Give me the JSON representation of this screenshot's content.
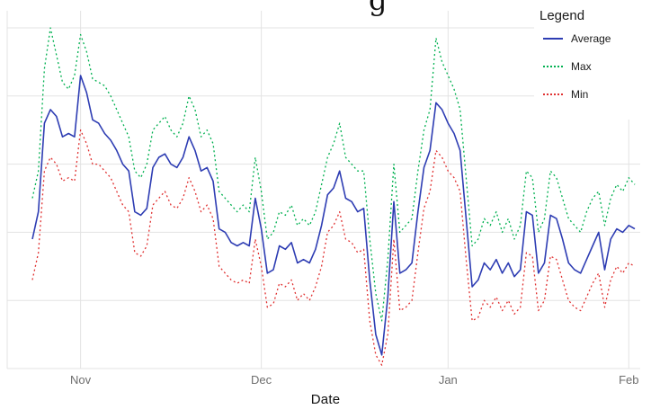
{
  "title_fragment": "g",
  "axis": {
    "x_title": "Date"
  },
  "legend": {
    "title": "Legend"
  },
  "colors": {
    "grid": "#e3e3e3",
    "tick_label": "#6e6e6e",
    "average": "#2e3db3",
    "max": "#00b050",
    "min": "#e03131"
  },
  "chart_data": {
    "type": "line",
    "title": "",
    "xlabel": "Date",
    "ylabel": "",
    "ylim": [
      0,
      105
    ],
    "y_gridlines": [
      0,
      20,
      40,
      60,
      80,
      100
    ],
    "grid": "on",
    "legend_position": "top-right",
    "x_ticks": [
      {
        "index": 8,
        "label": "Nov"
      },
      {
        "index": 38,
        "label": "Dec"
      },
      {
        "index": 69,
        "label": "Jan"
      },
      {
        "index": 99,
        "label": "Feb"
      }
    ],
    "series": [
      {
        "name": "Average",
        "color": "#2e3db3",
        "style": "solid",
        "values": [
          38,
          46,
          72,
          76,
          74,
          68,
          69,
          68,
          86,
          81,
          73,
          72,
          69,
          67,
          64,
          60,
          58,
          46,
          45,
          47,
          59,
          62,
          63,
          60,
          59,
          62,
          68,
          64,
          58,
          59,
          55,
          41,
          40,
          37,
          36,
          37,
          36,
          50,
          41,
          28,
          29,
          36,
          35,
          37,
          31,
          32,
          31,
          35,
          42,
          51,
          53,
          58,
          50,
          49,
          46,
          47,
          26,
          10,
          4,
          21,
          49,
          28,
          29,
          31,
          46,
          59,
          64,
          78,
          76,
          72,
          69,
          64,
          44,
          24,
          26,
          31,
          29,
          32,
          28,
          31,
          27,
          29,
          46,
          45,
          28,
          31,
          45,
          44,
          38,
          31,
          29,
          28,
          32,
          36,
          40,
          29,
          38,
          41,
          40,
          42,
          41
        ]
      },
      {
        "name": "Max",
        "color": "#00b050",
        "style": "dotted",
        "values": [
          50,
          58,
          88,
          100,
          92,
          84,
          82,
          86,
          98,
          93,
          85,
          84,
          83,
          80,
          76,
          72,
          68,
          58,
          56,
          60,
          70,
          72,
          74,
          70,
          68,
          72,
          80,
          76,
          68,
          70,
          66,
          52,
          50,
          48,
          46,
          48,
          46,
          62,
          52,
          38,
          40,
          46,
          45,
          48,
          42,
          44,
          42,
          46,
          54,
          62,
          66,
          72,
          62,
          60,
          58,
          58,
          38,
          22,
          14,
          32,
          60,
          40,
          42,
          44,
          58,
          70,
          76,
          97,
          90,
          86,
          82,
          76,
          56,
          36,
          38,
          44,
          42,
          46,
          40,
          44,
          38,
          42,
          58,
          56,
          40,
          44,
          58,
          56,
          50,
          44,
          42,
          40,
          46,
          50,
          52,
          42,
          50,
          54,
          52,
          56,
          54
        ]
      },
      {
        "name": "Min",
        "color": "#e03131",
        "style": "dotted",
        "values": [
          26,
          34,
          58,
          62,
          60,
          55,
          56,
          55,
          70,
          66,
          60,
          60,
          58,
          56,
          52,
          48,
          46,
          34,
          33,
          36,
          48,
          50,
          52,
          48,
          47,
          50,
          56,
          52,
          46,
          48,
          44,
          30,
          28,
          26,
          25,
          26,
          25,
          38,
          30,
          18,
          19,
          25,
          24,
          26,
          20,
          22,
          20,
          24,
          30,
          40,
          42,
          46,
          38,
          37,
          34,
          35,
          14,
          4,
          1,
          10,
          38,
          17,
          18,
          20,
          34,
          47,
          52,
          64,
          62,
          58,
          56,
          52,
          32,
          14,
          15,
          20,
          18,
          21,
          17,
          20,
          16,
          18,
          34,
          33,
          17,
          20,
          33,
          32,
          26,
          20,
          18,
          17,
          21,
          25,
          28,
          18,
          26,
          30,
          28,
          31,
          30
        ]
      }
    ]
  }
}
